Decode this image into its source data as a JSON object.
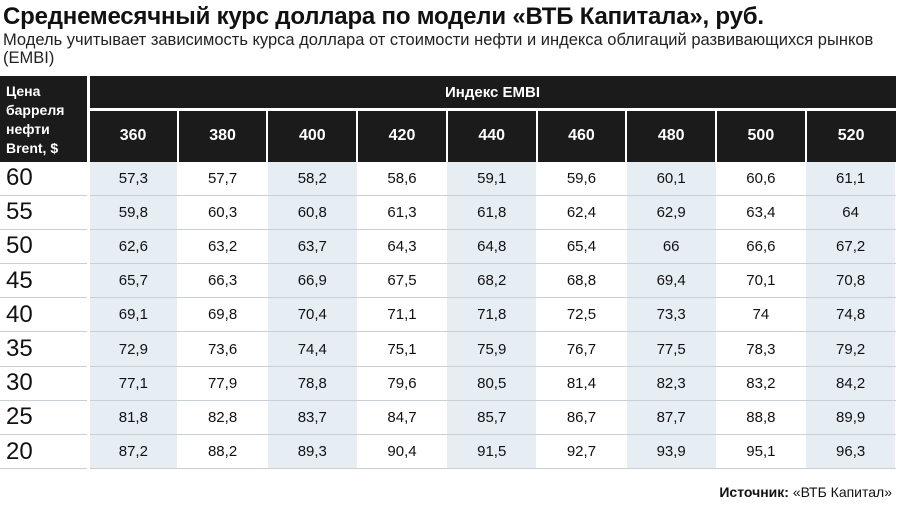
{
  "title": "Среднемесячный курс доллара по модели «ВТБ Капитала», руб.",
  "subtitle": "Модель учитывает зависимость курса доллара от стоимости нефти и индекса облигаций развивающихся рынков (EMBI)",
  "chart_data": {
    "type": "table",
    "row_header": "Цена барреля нефти Brent, $",
    "column_group": "Индекс EMBI",
    "columns": [
      "360",
      "380",
      "400",
      "420",
      "440",
      "460",
      "480",
      "500",
      "520"
    ],
    "rows": [
      {
        "label": "60",
        "values": [
          "57,3",
          "57,7",
          "58,2",
          "58,6",
          "59,1",
          "59,6",
          "60,1",
          "60,6",
          "61,1"
        ]
      },
      {
        "label": "55",
        "values": [
          "59,8",
          "60,3",
          "60,8",
          "61,3",
          "61,8",
          "62,4",
          "62,9",
          "63,4",
          "64"
        ]
      },
      {
        "label": "50",
        "values": [
          "62,6",
          "63,2",
          "63,7",
          "64,3",
          "64,8",
          "65,4",
          "66",
          "66,6",
          "67,2"
        ]
      },
      {
        "label": "45",
        "values": [
          "65,7",
          "66,3",
          "66,9",
          "67,5",
          "68,2",
          "68,8",
          "69,4",
          "70,1",
          "70,8"
        ]
      },
      {
        "label": "40",
        "values": [
          "69,1",
          "69,8",
          "70,4",
          "71,1",
          "71,8",
          "72,5",
          "73,3",
          "74",
          "74,8"
        ]
      },
      {
        "label": "35",
        "values": [
          "72,9",
          "73,6",
          "74,4",
          "75,1",
          "75,9",
          "76,7",
          "77,5",
          "78,3",
          "79,2"
        ]
      },
      {
        "label": "30",
        "values": [
          "77,1",
          "77,9",
          "78,8",
          "79,6",
          "80,5",
          "81,4",
          "82,3",
          "83,2",
          "84,2"
        ]
      },
      {
        "label": "25",
        "values": [
          "81,8",
          "82,8",
          "83,7",
          "84,7",
          "85,7",
          "86,7",
          "87,7",
          "88,8",
          "89,9"
        ]
      },
      {
        "label": "20",
        "values": [
          "87,2",
          "88,2",
          "89,3",
          "90,4",
          "91,5",
          "92,7",
          "93,9",
          "95,1",
          "96,3"
        ]
      }
    ]
  },
  "source": {
    "label": "Источник:",
    "value": "«ВТБ Капитал»"
  },
  "colors": {
    "header_bg": "#1b1b1b",
    "shaded_cell": "#e6eef4"
  }
}
